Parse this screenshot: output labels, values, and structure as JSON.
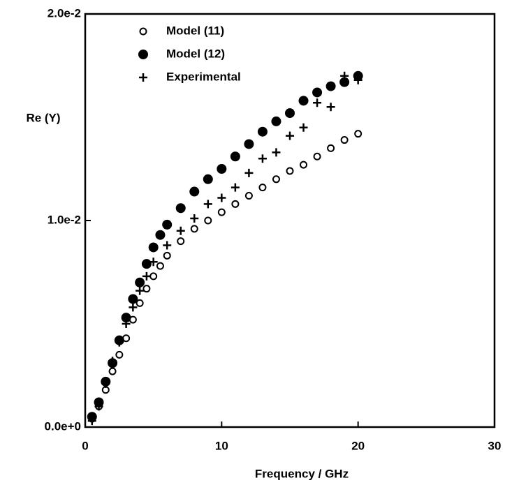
{
  "chart_data": {
    "type": "scatter",
    "xlabel": "Frequency / GHz",
    "ylabel": "Re (Y)",
    "xlim": [
      0,
      30
    ],
    "xticks": [
      0,
      10,
      20,
      30
    ],
    "ylim": [
      0,
      0.02
    ],
    "yticks": [
      {
        "value": 0,
        "label": "0.0e+0"
      },
      {
        "value": 0.01,
        "label": "1.0e-2"
      },
      {
        "value": 0.02,
        "label": "2.0e-2"
      }
    ],
    "legend": "upper left",
    "series": [
      {
        "name": "Model (11)",
        "color": "#000000",
        "marker": "open-circle",
        "x": [
          0.5,
          1,
          1.5,
          2,
          2.5,
          3,
          3.5,
          4,
          4.5,
          5,
          5.5,
          6,
          7,
          8,
          9,
          10,
          11,
          12,
          13,
          14,
          15,
          16,
          17,
          18,
          19,
          20
        ],
        "values": [
          0.0004,
          0.001,
          0.0018,
          0.0027,
          0.0035,
          0.0043,
          0.0052,
          0.006,
          0.0067,
          0.0073,
          0.0078,
          0.0083,
          0.009,
          0.0096,
          0.01,
          0.0104,
          0.0108,
          0.0112,
          0.0116,
          0.012,
          0.0124,
          0.0127,
          0.0131,
          0.0135,
          0.0139,
          0.0142
        ]
      },
      {
        "name": "Model (12)",
        "color": "#000000",
        "marker": "filled-circle",
        "x": [
          0.5,
          1,
          1.5,
          2,
          2.5,
          3,
          3.5,
          4,
          4.5,
          5,
          5.5,
          6,
          7,
          8,
          9,
          10,
          11,
          12,
          13,
          14,
          15,
          16,
          17,
          18,
          19,
          20
        ],
        "values": [
          0.0005,
          0.0012,
          0.0022,
          0.0031,
          0.0042,
          0.0053,
          0.0062,
          0.007,
          0.0079,
          0.0087,
          0.0093,
          0.0098,
          0.0106,
          0.0114,
          0.012,
          0.0125,
          0.0131,
          0.0137,
          0.0143,
          0.0148,
          0.0152,
          0.0158,
          0.0162,
          0.0165,
          0.0167,
          0.017
        ]
      },
      {
        "name": "Experimental",
        "color": "#000000",
        "marker": "plus",
        "x": [
          0.5,
          1,
          1.5,
          2,
          2.5,
          3,
          3.5,
          4,
          4.5,
          5,
          6,
          7,
          8,
          9,
          10,
          11,
          12,
          13,
          14,
          15,
          16,
          17,
          18,
          19,
          20
        ],
        "values": [
          0.0003,
          0.001,
          0.0021,
          0.0032,
          0.0041,
          0.005,
          0.0058,
          0.0066,
          0.0073,
          0.008,
          0.0088,
          0.0095,
          0.0101,
          0.0108,
          0.0111,
          0.0116,
          0.0123,
          0.013,
          0.0133,
          0.0141,
          0.0145,
          0.0157,
          0.0155,
          0.017,
          0.0168
        ]
      }
    ]
  }
}
